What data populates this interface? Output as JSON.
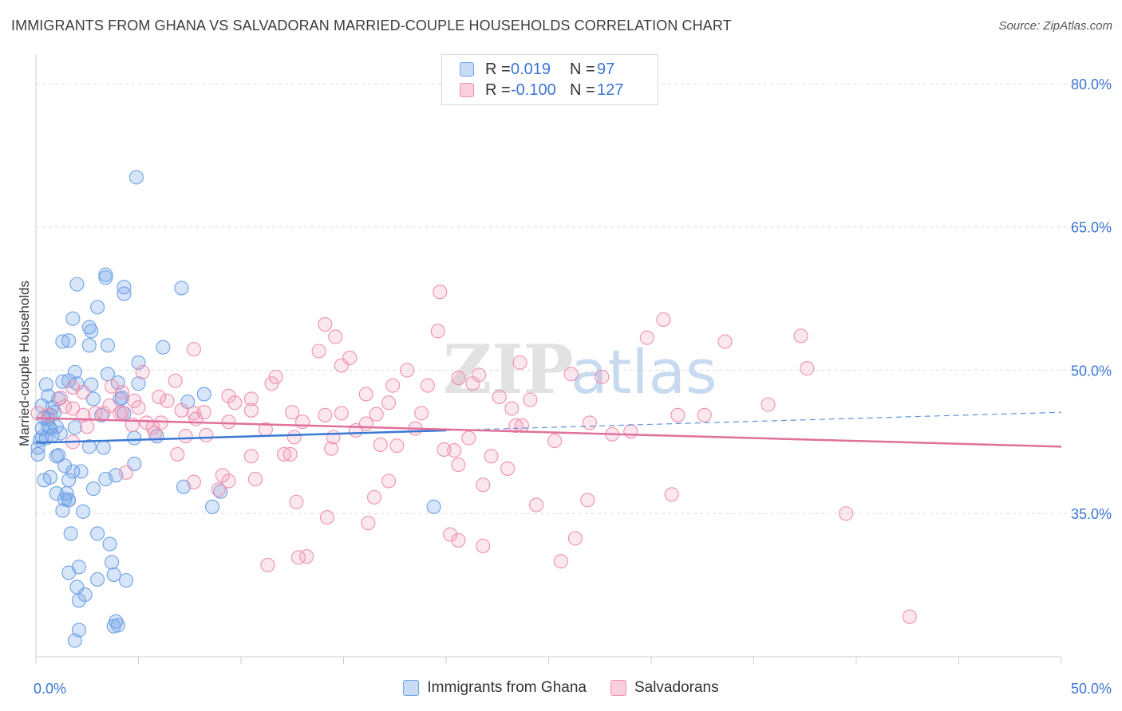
{
  "title": "IMMIGRANTS FROM GHANA VS SALVADORAN MARRIED-COUPLE HOUSEHOLDS CORRELATION CHART",
  "source": "Source: ZipAtlas.com",
  "watermark": {
    "zip": "ZIP",
    "atlas": "atlas"
  },
  "legend_top": {
    "rows": [
      {
        "r_label": "R =",
        "r_value": "0.019",
        "n_label": "N =",
        "n_value": "97",
        "color": "#6fa1e6"
      },
      {
        "r_label": "R =",
        "r_value": "-0.100",
        "n_label": "N =",
        "n_value": "127",
        "color": "#ef90b0"
      }
    ]
  },
  "legend_bottom": [
    {
      "label": "Immigrants from Ghana",
      "color": "#6fa1e6"
    },
    {
      "label": "Salvadorans",
      "color": "#ef90b0"
    }
  ],
  "chart_data": {
    "type": "scatter",
    "title": "IMMIGRANTS FROM GHANA VS SALVADORAN MARRIED-COUPLE HOUSEHOLDS CORRELATION CHART",
    "xlabel": "",
    "ylabel": "Married-couple Households",
    "xlim": [
      0,
      50
    ],
    "ylim": [
      20,
      82.5
    ],
    "x_tick_labels": [
      {
        "value": 0,
        "label": "0.0%"
      },
      {
        "value": 50,
        "label": "50.0%"
      }
    ],
    "y_tick_labels": [
      {
        "value": 35,
        "label": "35.0%"
      },
      {
        "value": 50,
        "label": "50.0%"
      },
      {
        "value": 65,
        "label": "65.0%"
      },
      {
        "value": 80,
        "label": "80.0%"
      }
    ],
    "grid": true,
    "series": [
      {
        "name": "Immigrants from Ghana",
        "color": "#6fa1e6",
        "trend": {
          "x0": 0,
          "y0": 42.4,
          "x1": 20,
          "y1": 43.7,
          "dash_x1": 50,
          "dash_y1": 45.6
        },
        "points": [
          [
            4.9,
            70.2
          ],
          [
            3.4,
            60.0
          ],
          [
            2.0,
            59.0
          ],
          [
            4.3,
            58.7
          ],
          [
            3.4,
            59.7
          ],
          [
            4.3,
            58.0
          ],
          [
            7.1,
            58.6
          ],
          [
            3.0,
            56.6
          ],
          [
            1.8,
            55.4
          ],
          [
            2.7,
            54.1
          ],
          [
            2.6,
            54.5
          ],
          [
            1.3,
            53.0
          ],
          [
            1.6,
            53.1
          ],
          [
            2.6,
            52.6
          ],
          [
            3.5,
            52.6
          ],
          [
            6.2,
            52.4
          ],
          [
            5.0,
            50.8
          ],
          [
            1.9,
            49.8
          ],
          [
            3.5,
            49.6
          ],
          [
            1.3,
            48.8
          ],
          [
            1.6,
            48.9
          ],
          [
            2.0,
            48.6
          ],
          [
            2.7,
            48.5
          ],
          [
            4.0,
            48.7
          ],
          [
            0.5,
            48.5
          ],
          [
            5.0,
            48.6
          ],
          [
            0.6,
            47.3
          ],
          [
            1.1,
            47.0
          ],
          [
            2.8,
            47.0
          ],
          [
            4.2,
            47.1
          ],
          [
            4.1,
            47.0
          ],
          [
            8.2,
            47.5
          ],
          [
            7.4,
            46.7
          ],
          [
            0.3,
            46.3
          ],
          [
            0.8,
            46.1
          ],
          [
            0.9,
            45.6
          ],
          [
            4.3,
            45.5
          ],
          [
            0.7,
            45.3
          ],
          [
            0.4,
            45.0
          ],
          [
            3.2,
            45.3
          ],
          [
            0.6,
            44.9
          ],
          [
            1.0,
            44.1
          ],
          [
            0.7,
            43.9
          ],
          [
            0.3,
            43.9
          ],
          [
            0.6,
            44.1
          ],
          [
            1.9,
            44.0
          ],
          [
            0.8,
            43.2
          ],
          [
            1.2,
            43.4
          ],
          [
            0.5,
            42.9
          ],
          [
            5.9,
            43.1
          ],
          [
            4.8,
            42.9
          ],
          [
            0.2,
            42.7
          ],
          [
            2.6,
            42.0
          ],
          [
            3.3,
            41.9
          ],
          [
            1.0,
            41.0
          ],
          [
            0.1,
            41.2
          ],
          [
            1.1,
            41.1
          ],
          [
            4.8,
            40.2
          ],
          [
            1.8,
            39.4
          ],
          [
            2.2,
            39.4
          ],
          [
            0.7,
            38.8
          ],
          [
            3.9,
            39.0
          ],
          [
            0.4,
            38.5
          ],
          [
            1.6,
            38.5
          ],
          [
            3.4,
            38.6
          ],
          [
            2.8,
            37.6
          ],
          [
            1.0,
            37.1
          ],
          [
            1.5,
            37.1
          ],
          [
            7.2,
            37.8
          ],
          [
            9.0,
            37.3
          ],
          [
            1.6,
            36.4
          ],
          [
            1.6,
            36.4
          ],
          [
            1.4,
            36.5
          ],
          [
            8.6,
            35.7
          ],
          [
            1.3,
            35.3
          ],
          [
            2.3,
            35.2
          ],
          [
            19.4,
            35.7
          ],
          [
            1.7,
            32.9
          ],
          [
            3.0,
            32.9
          ],
          [
            3.6,
            31.8
          ],
          [
            3.7,
            29.9
          ],
          [
            2.1,
            29.4
          ],
          [
            1.6,
            28.8
          ],
          [
            3.8,
            28.6
          ],
          [
            3.0,
            28.1
          ],
          [
            4.4,
            28.0
          ],
          [
            2.0,
            27.3
          ],
          [
            2.4,
            26.5
          ],
          [
            2.1,
            25.9
          ],
          [
            3.9,
            23.7
          ],
          [
            4.0,
            23.3
          ],
          [
            3.8,
            23.2
          ],
          [
            2.1,
            22.8
          ],
          [
            1.9,
            21.7
          ],
          [
            0.1,
            41.9
          ],
          [
            0.3,
            43.0
          ],
          [
            1.4,
            40.0
          ]
        ]
      },
      {
        "name": "Salvadorans",
        "color": "#ef90b0",
        "trend": {
          "x0": 0,
          "y0": 45.0,
          "x1": 50,
          "y1": 42.0
        },
        "points": [
          [
            19.7,
            58.2
          ],
          [
            30.6,
            55.3
          ],
          [
            14.1,
            54.8
          ],
          [
            19.6,
            54.1
          ],
          [
            29.8,
            53.4
          ],
          [
            14.6,
            53.5
          ],
          [
            37.3,
            53.6
          ],
          [
            33.6,
            53.0
          ],
          [
            13.8,
            52.0
          ],
          [
            7.7,
            52.2
          ],
          [
            15.3,
            51.3
          ],
          [
            23.6,
            50.8
          ],
          [
            14.9,
            50.5
          ],
          [
            18.1,
            50.0
          ],
          [
            26.1,
            49.6
          ],
          [
            21.6,
            49.5
          ],
          [
            5.2,
            49.8
          ],
          [
            11.7,
            49.3
          ],
          [
            20.6,
            49.2
          ],
          [
            27.6,
            49.3
          ],
          [
            37.6,
            50.2
          ],
          [
            6.8,
            48.9
          ],
          [
            11.5,
            48.6
          ],
          [
            17.4,
            48.4
          ],
          [
            19.1,
            48.4
          ],
          [
            3.7,
            48.3
          ],
          [
            1.8,
            48.2
          ],
          [
            21.3,
            48.6
          ],
          [
            16.1,
            47.5
          ],
          [
            9.4,
            47.3
          ],
          [
            22.6,
            47.2
          ],
          [
            24.1,
            46.9
          ],
          [
            1.2,
            47.1
          ],
          [
            2.3,
            47.7
          ],
          [
            4.2,
            47.7
          ],
          [
            6.0,
            47.2
          ],
          [
            4.8,
            46.8
          ],
          [
            6.4,
            46.8
          ],
          [
            10.5,
            47.0
          ],
          [
            9.7,
            46.6
          ],
          [
            17.2,
            46.6
          ],
          [
            35.7,
            46.4
          ],
          [
            3.6,
            46.3
          ],
          [
            1.8,
            46.0
          ],
          [
            1.4,
            46.2
          ],
          [
            5.0,
            46.1
          ],
          [
            7.1,
            45.8
          ],
          [
            10.5,
            45.8
          ],
          [
            23.2,
            46.0
          ],
          [
            2.9,
            45.5
          ],
          [
            3.3,
            45.5
          ],
          [
            4.2,
            45.6
          ],
          [
            0.1,
            45.5
          ],
          [
            0.6,
            45.3
          ],
          [
            7.7,
            45.5
          ],
          [
            8.2,
            45.6
          ],
          [
            12.5,
            45.6
          ],
          [
            18.8,
            45.5
          ],
          [
            14.1,
            45.3
          ],
          [
            14.9,
            45.5
          ],
          [
            16.6,
            45.4
          ],
          [
            31.3,
            45.3
          ],
          [
            32.6,
            45.3
          ],
          [
            7.8,
            44.9
          ],
          [
            9.4,
            44.6
          ],
          [
            6.1,
            44.5
          ],
          [
            4.7,
            44.3
          ],
          [
            5.4,
            44.5
          ],
          [
            13.0,
            44.6
          ],
          [
            16.1,
            44.4
          ],
          [
            23.7,
            44.2
          ],
          [
            23.4,
            44.2
          ],
          [
            27.0,
            44.5
          ],
          [
            2.5,
            44.1
          ],
          [
            5.7,
            44.0
          ],
          [
            11.2,
            43.8
          ],
          [
            15.6,
            43.7
          ],
          [
            18.5,
            43.9
          ],
          [
            29.0,
            43.6
          ],
          [
            28.1,
            43.3
          ],
          [
            8.3,
            43.2
          ],
          [
            7.3,
            43.1
          ],
          [
            12.6,
            43.0
          ],
          [
            14.5,
            43.0
          ],
          [
            21.1,
            42.9
          ],
          [
            25.3,
            42.6
          ],
          [
            16.8,
            42.2
          ],
          [
            17.6,
            42.1
          ],
          [
            1.8,
            42.5
          ],
          [
            19.9,
            41.7
          ],
          [
            20.4,
            41.6
          ],
          [
            14.4,
            41.8
          ],
          [
            12.4,
            41.2
          ],
          [
            12.1,
            41.2
          ],
          [
            10.5,
            41.0
          ],
          [
            6.9,
            41.2
          ],
          [
            22.2,
            41.0
          ],
          [
            20.6,
            40.1
          ],
          [
            23.0,
            39.7
          ],
          [
            4.4,
            39.3
          ],
          [
            9.1,
            39.0
          ],
          [
            9.4,
            38.4
          ],
          [
            10.7,
            38.6
          ],
          [
            7.7,
            38.3
          ],
          [
            17.2,
            38.4
          ],
          [
            21.8,
            38.0
          ],
          [
            16.5,
            36.7
          ],
          [
            12.7,
            36.2
          ],
          [
            26.9,
            36.4
          ],
          [
            31.0,
            37.0
          ],
          [
            24.4,
            35.9
          ],
          [
            39.5,
            35.0
          ],
          [
            14.2,
            34.6
          ],
          [
            16.2,
            34.0
          ],
          [
            20.2,
            32.8
          ],
          [
            21.8,
            31.6
          ],
          [
            20.6,
            32.2
          ],
          [
            26.3,
            32.4
          ],
          [
            12.8,
            30.4
          ],
          [
            13.2,
            30.5
          ],
          [
            25.6,
            30.0
          ],
          [
            11.3,
            29.6
          ],
          [
            42.6,
            24.2
          ],
          [
            5.8,
            43.4
          ],
          [
            2.3,
            45.3
          ],
          [
            4.1,
            45.5
          ],
          [
            8.9,
            37.5
          ]
        ]
      }
    ]
  }
}
